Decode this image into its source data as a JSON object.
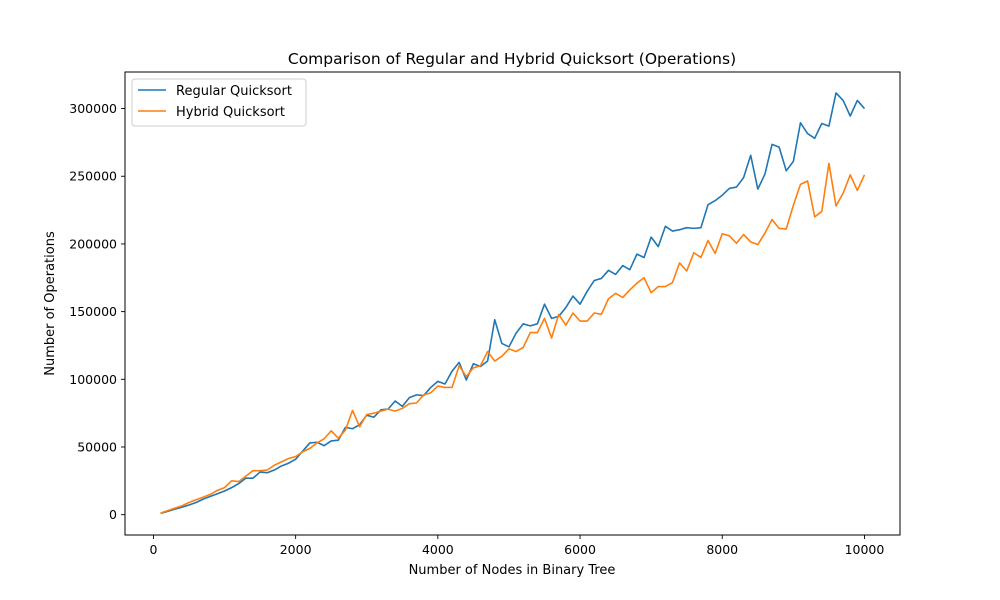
{
  "chart_data": {
    "type": "line",
    "title": "Comparison of Regular and Hybrid Quicksort (Operations)",
    "xlabel": "Number of Nodes in Binary Tree",
    "ylabel": "Number of Operations",
    "xlim": [
      -400,
      10500
    ],
    "ylim": [
      -15000,
      327000
    ],
    "xticks": [
      0,
      2000,
      4000,
      6000,
      8000,
      10000
    ],
    "yticks": [
      0,
      50000,
      100000,
      150000,
      200000,
      250000,
      300000
    ],
    "grid": false,
    "legend_position": "top-left",
    "x": [
      100,
      200,
      300,
      400,
      500,
      600,
      700,
      800,
      900,
      1000,
      1100,
      1200,
      1300,
      1400,
      1500,
      1600,
      1700,
      1800,
      1900,
      2000,
      2100,
      2200,
      2300,
      2400,
      2500,
      2600,
      2700,
      2800,
      2900,
      3000,
      3100,
      3200,
      3300,
      3400,
      3500,
      3600,
      3700,
      3800,
      3900,
      4000,
      4100,
      4200,
      4300,
      4400,
      4500,
      4600,
      4700,
      4800,
      4900,
      5000,
      5100,
      5200,
      5300,
      5400,
      5500,
      5600,
      5700,
      5800,
      5900,
      6000,
      6100,
      6200,
      6300,
      6400,
      6500,
      6600,
      6700,
      6800,
      6900,
      7000,
      7100,
      7200,
      7300,
      7400,
      7500,
      7600,
      7700,
      7800,
      7900,
      8000,
      8100,
      8200,
      8300,
      8400,
      8500,
      8600,
      8700,
      8800,
      8900,
      9000,
      9100,
      9200,
      9300,
      9400,
      9500,
      9600,
      9700,
      9800,
      9900,
      10000
    ],
    "series": [
      {
        "name": "Regular Quicksort",
        "color": "#1f77b4",
        "values": [
          1000,
          2500,
          4000,
          5500,
          7200,
          9000,
          11500,
          13500,
          15500,
          17500,
          20000,
          23000,
          27000,
          27000,
          31500,
          31000,
          33000,
          36000,
          38000,
          41000,
          47000,
          53000,
          53500,
          51000,
          54500,
          55000,
          64500,
          63500,
          66500,
          73500,
          72000,
          77500,
          78000,
          84000,
          80000,
          86500,
          88500,
          88000,
          94000,
          98500,
          96500,
          106000,
          112500,
          99500,
          111500,
          109500,
          113500,
          144000,
          126500,
          124000,
          134000,
          141000,
          139500,
          141000,
          155500,
          145000,
          146500,
          153000,
          161500,
          155500,
          165000,
          173000,
          174500,
          180500,
          177500,
          184000,
          181000,
          192500,
          190000,
          205000,
          198000,
          213000,
          209500,
          210500,
          212000,
          211500,
          212000,
          229000,
          232000,
          236000,
          241000,
          242000,
          249000,
          265500,
          240500,
          251500,
          273500,
          271500,
          254000,
          261000,
          289500,
          281500,
          278000,
          289000,
          287000,
          311500,
          306000,
          294500,
          306000,
          300000
        ]
      },
      {
        "name": "Hybrid Quicksort",
        "color": "#ff7f0e",
        "values": [
          1200,
          3000,
          4800,
          6500,
          9000,
          11000,
          13000,
          15000,
          18000,
          20000,
          25000,
          24500,
          28500,
          32500,
          32500,
          33000,
          36500,
          39000,
          41500,
          43000,
          46500,
          49000,
          53000,
          56000,
          62000,
          56500,
          62500,
          77000,
          65000,
          74000,
          75000,
          76500,
          78000,
          76500,
          78500,
          82000,
          82500,
          88500,
          90000,
          95000,
          94000,
          94000,
          110000,
          102000,
          108500,
          110000,
          120500,
          113500,
          117000,
          122500,
          120500,
          123500,
          134500,
          134500,
          145000,
          130500,
          148000,
          140000,
          149000,
          143000,
          143000,
          149000,
          148000,
          159500,
          163500,
          160500,
          166000,
          171000,
          175000,
          164000,
          168500,
          168500,
          171500,
          186000,
          180000,
          193500,
          190000,
          202500,
          193000,
          207500,
          206000,
          200500,
          207000,
          201500,
          199500,
          208000,
          218000,
          211500,
          211000,
          228500,
          244000,
          246500,
          220000,
          224000,
          259500,
          228000,
          237500,
          251000,
          239500,
          251000
        ]
      }
    ]
  }
}
